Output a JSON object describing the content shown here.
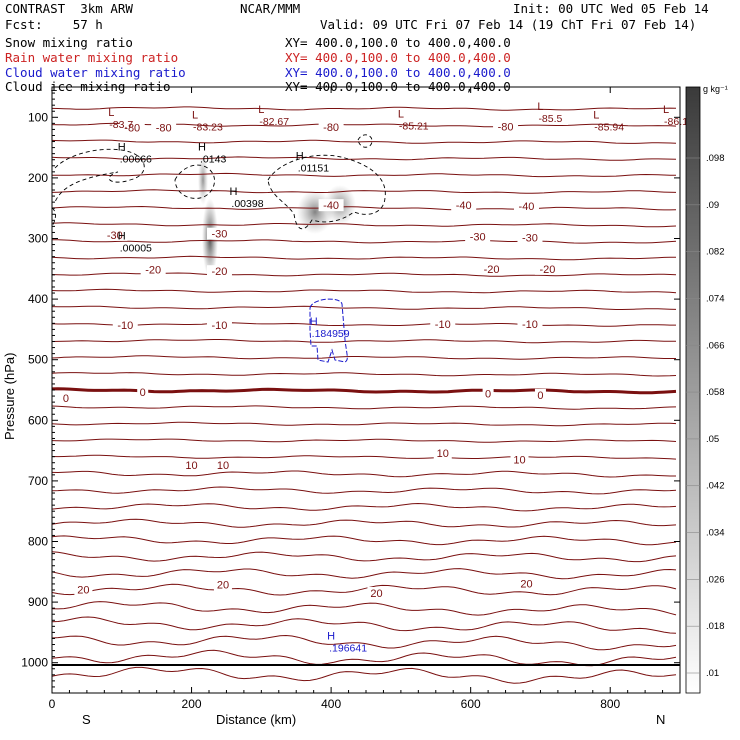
{
  "header": {
    "left1": "CONTRAST  3km ARW",
    "center1": "NCAR/MMM",
    "right1": "Init: 00 UTC Wed 05 Feb 14",
    "left2": "Fcst:    57 h",
    "right2": "Valid: 09 UTC Fri 07 Feb 14 (19 ChT Fri 07 Feb 14)",
    "fields": [
      {
        "name": "Snow mixing ratio",
        "xy": "XY= 400.0,100.0 to 400.0,400.0",
        "color": "#000000"
      },
      {
        "name": "Rain water mixing ratio",
        "xy": "XY= 400.0,100.0 to 400.0,400.0",
        "color": "#cc2222"
      },
      {
        "name": "Cloud water mixing ratio",
        "xy": "XY= 400.0,100.0 to 400.0,400.0",
        "color": "#1a1acc"
      },
      {
        "name": "Cloud ice mixing ratio",
        "xy": "XY= 400.0,100.0 to 400.0,400.0",
        "color": "#000000"
      }
    ]
  },
  "chart_data": {
    "type": "contour",
    "xlabel": "Distance (km)",
    "ylabel": "Pressure (hPa)",
    "xlim": [
      0,
      900
    ],
    "ylim": [
      1050,
      50
    ],
    "x_ticks": [
      0,
      200,
      400,
      600,
      800
    ],
    "y_ticks": [
      100,
      200,
      300,
      400,
      500,
      600,
      700,
      800,
      900,
      1000
    ],
    "x_end_labels": {
      "left": "S",
      "right": "N"
    },
    "contour_color": "#7a1010",
    "temperature_contour_labels": [
      {
        "text": "-80",
        "x": 115,
        "p": 117
      },
      {
        "text": "-80",
        "x": 160,
        "p": 117
      },
      {
        "text": "-80",
        "x": 400,
        "p": 116
      },
      {
        "text": "-80",
        "x": 650,
        "p": 115
      },
      {
        "text": "-40",
        "x": 400,
        "p": 245
      },
      {
        "text": "-40",
        "x": 590,
        "p": 245
      },
      {
        "text": "-40",
        "x": 680,
        "p": 246
      },
      {
        "text": "-30",
        "x": 90,
        "p": 294
      },
      {
        "text": "-30",
        "x": 240,
        "p": 292
      },
      {
        "text": "-30",
        "x": 610,
        "p": 297
      },
      {
        "text": "-30",
        "x": 685,
        "p": 298
      },
      {
        "text": "-20",
        "x": 145,
        "p": 351
      },
      {
        "text": "-20",
        "x": 240,
        "p": 354
      },
      {
        "text": "-20",
        "x": 630,
        "p": 350
      },
      {
        "text": "-20",
        "x": 710,
        "p": 350
      },
      {
        "text": "-10",
        "x": 105,
        "p": 443
      },
      {
        "text": "-10",
        "x": 240,
        "p": 443
      },
      {
        "text": "-10",
        "x": 560,
        "p": 441
      },
      {
        "text": "-10",
        "x": 685,
        "p": 441
      },
      {
        "text": "0",
        "x": 20,
        "p": 563
      },
      {
        "text": "0",
        "x": 130,
        "p": 553
      },
      {
        "text": "0",
        "x": 625,
        "p": 556
      },
      {
        "text": "0",
        "x": 700,
        "p": 558
      },
      {
        "text": "10",
        "x": 200,
        "p": 674
      },
      {
        "text": "10",
        "x": 245,
        "p": 674
      },
      {
        "text": "10",
        "x": 560,
        "p": 654
      },
      {
        "text": "10",
        "x": 670,
        "p": 665
      },
      {
        "text": "20",
        "x": 45,
        "p": 879
      },
      {
        "text": "20",
        "x": 245,
        "p": 871
      },
      {
        "text": "20",
        "x": 465,
        "p": 885
      },
      {
        "text": "20",
        "x": 680,
        "p": 869
      }
    ],
    "extrema_labels": [
      {
        "mark": "L",
        "value": "-83.7",
        "x": 85,
        "p": 98,
        "color": "#7a1010"
      },
      {
        "mark": "L",
        "value": "-83.23",
        "x": 205,
        "p": 102,
        "color": "#7a1010"
      },
      {
        "mark": "L",
        "value": "-82.67",
        "x": 300,
        "p": 93,
        "color": "#7a1010"
      },
      {
        "mark": "L",
        "value": "-85.21",
        "x": 500,
        "p": 100,
        "color": "#7a1010"
      },
      {
        "mark": "L",
        "value": "-85.5",
        "x": 700,
        "p": 88,
        "color": "#7a1010"
      },
      {
        "mark": "L",
        "value": "-85.94",
        "x": 780,
        "p": 102,
        "color": "#7a1010"
      },
      {
        "mark": "L",
        "value": "-86.1",
        "x": 880,
        "p": 93,
        "color": "#7a1010"
      },
      {
        "mark": "H",
        "value": ".00666",
        "x": 100,
        "p": 155,
        "color": "#000000"
      },
      {
        "mark": "H",
        "value": ".0143",
        "x": 215,
        "p": 155,
        "color": "#000000"
      },
      {
        "mark": "H",
        "value": ".01151",
        "x": 355,
        "p": 170,
        "color": "#000000"
      },
      {
        "mark": "H",
        "value": ".00398",
        "x": 260,
        "p": 228,
        "color": "#000000"
      },
      {
        "mark": "H",
        "value": ".00005",
        "x": 100,
        "p": 302,
        "color": "#000000"
      },
      {
        "mark": "H",
        "value": ".184959",
        "x": 375,
        "p": 443,
        "color": "#1a1acc"
      },
      {
        "mark": "H",
        "value": ".196641",
        "x": 400,
        "p": 962,
        "color": "#1a1acc"
      }
    ],
    "colorbar": {
      "units": "g kg⁻¹",
      "levels": [
        ".01",
        ".018",
        ".026",
        ".034",
        ".042",
        ".05",
        ".058",
        ".066",
        ".074",
        ".082",
        ".09",
        ".098"
      ]
    }
  }
}
